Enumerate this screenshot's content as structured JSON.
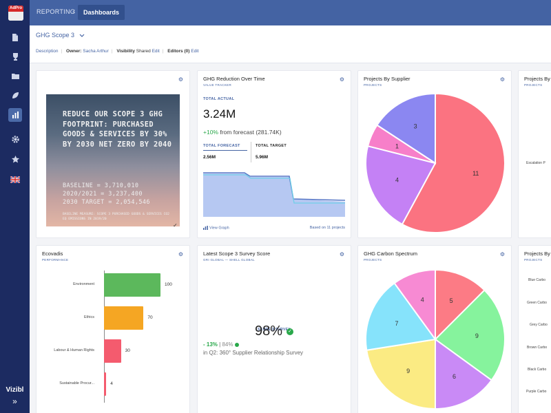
{
  "sidebar": {
    "logo_text": "AdPro",
    "brand": "Vizibl",
    "expand_glyph": "»",
    "icons": [
      "document-icon",
      "trophy-icon",
      "folder-icon",
      "leaf-icon",
      "chart-icon",
      "gear-icon",
      "star-icon",
      "uk-flag-icon"
    ]
  },
  "topbar": {
    "section": "REPORTING",
    "separator": "‹",
    "active_tab": "Dashboards"
  },
  "header": {
    "board_name": "GHG Scope 3",
    "description_link": "Description",
    "owner_label": "Owner:",
    "owner_name": "Sacha Arthur",
    "visibility_label": "Visibility",
    "visibility_value": "Shared",
    "visibility_edit": "Edit",
    "editors_label": "Editors (0)",
    "editors_edit": "Edit"
  },
  "goal_card": {
    "headline": "REDUCE OUR SCOPE 3 GHG FOOTPRINT: PURCHASED GOODS & SERVICES BY 30% BY 2030 NET ZERO BY 2040",
    "line1": "BASELINE = 3,710,010",
    "line2": "2020/2021 = 3,237,400",
    "line3": "2030 TARGET = 2,054,546",
    "footnote": "BASELINE MEASURE: SCOPE 3 PURCHASED GOODS & SERVICES CO2 EQ EMISSIONS IN 2019/20",
    "check": "✓"
  },
  "value_tracker": {
    "title": "GHG Reduction Over Time",
    "subtitle": "VALUE TRACKER",
    "total_actual_label": "TOTAL ACTUAL",
    "total_actual": "3.24M",
    "change_pct": "+10%",
    "change_text": "from forecast (281.74K)",
    "total_forecast_label": "TOTAL FORECAST",
    "total_forecast": "2.56M",
    "total_target_label": "TOTAL TARGET",
    "total_target": "5.96M",
    "view_graph": "View Graph",
    "based_on": "Based on 11 projects"
  },
  "supplier_card": {
    "title": "Projects By Supplier",
    "subtitle": "PROJECTS",
    "slices": [
      {
        "value": 11,
        "color": "#fb7381"
      },
      {
        "value": 4,
        "color": "#c481f5"
      },
      {
        "value": 1,
        "color": "#f77fc9"
      },
      {
        "value": 3,
        "color": "#8b87f1"
      }
    ]
  },
  "partial_card_top": {
    "title": "Projects By",
    "subtitle": "PROJECTS",
    "labels": [
      "Escalation P"
    ]
  },
  "ecovadis_card": {
    "title": "Ecovadis",
    "subtitle": "PERFORMANCE"
  },
  "survey_card": {
    "title": "Latest Scope 3 Survey Score",
    "subtitle": "GRI GLOBAL — SHELL GLOBAL",
    "label": "SCOPE 3 SURVEY",
    "score": "98%",
    "check": "✓",
    "change_down": "- 13%",
    "change_sep": "|",
    "change_pct": "84%",
    "detail": "in Q2: 360° Supplier Relationship Survey"
  },
  "spectrum_card": {
    "title": "GHG Carbon Spectrum",
    "subtitle": "PROJECTS",
    "slices": [
      {
        "value": 5,
        "color": "#fc7b85"
      },
      {
        "value": 9,
        "color": "#86f39d"
      },
      {
        "value": 6,
        "color": "#c98af6"
      },
      {
        "value": 9,
        "color": "#fbeb83"
      },
      {
        "value": 7,
        "color": "#86e3fb"
      },
      {
        "value": 4,
        "color": "#f78ad3"
      }
    ]
  },
  "partial_card_bottom": {
    "title": "Projects By",
    "subtitle": "PROJECTS",
    "labels": [
      "Blue Carbo",
      "Green Carbo",
      "Grey Carbo",
      "Brown Carbo",
      "Black Carbo",
      "Purple Carbo"
    ]
  },
  "chart_data": [
    {
      "type": "bar",
      "orientation": "horizontal",
      "categories": [
        "Environment",
        "Ethics",
        "Labour & Human Rights",
        "Sustainable Procur..."
      ],
      "values": [
        100,
        70,
        30,
        4
      ],
      "colors": [
        "#5cb85c",
        "#f5a623",
        "#f45b6e",
        "#f45b6e"
      ],
      "xlim": [
        0,
        100
      ]
    },
    {
      "type": "pie",
      "labels": [
        "11",
        "4",
        "1",
        "3"
      ],
      "values": [
        11,
        4,
        1,
        3
      ]
    },
    {
      "type": "pie",
      "labels": [
        "5",
        "9",
        "6",
        "9",
        "7",
        "4"
      ],
      "values": [
        5,
        9,
        6,
        9,
        7,
        4
      ]
    }
  ]
}
